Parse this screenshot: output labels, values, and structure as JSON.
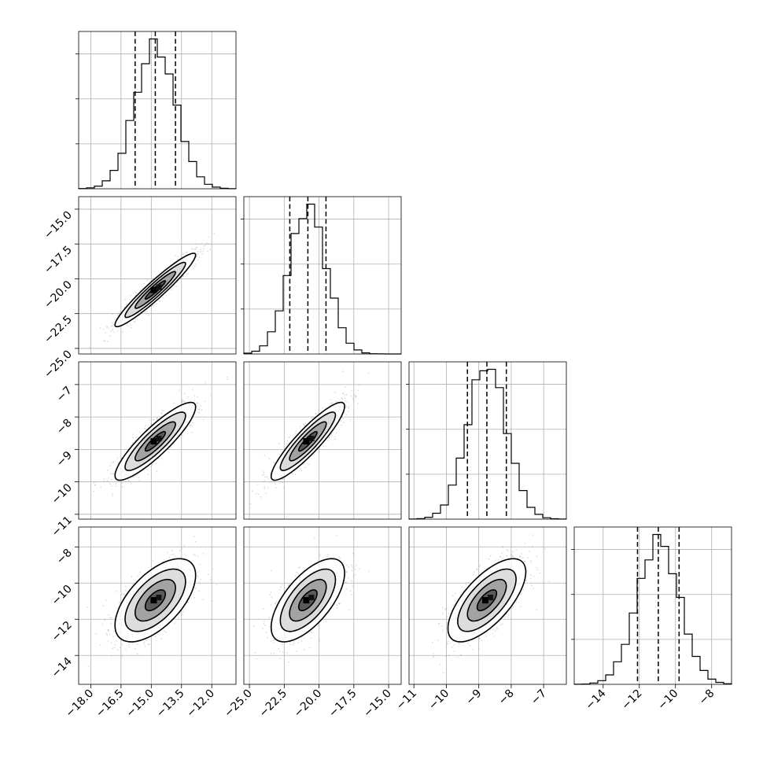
{
  "chart_data": {
    "type": "corner",
    "parameters": 4,
    "colors": {
      "line": "#000000",
      "scatter": "#9e9e9e",
      "grid": "#b0b0b0"
    },
    "grid": true,
    "ranges": [
      [
        -18.6,
        -10.8
      ],
      [
        -25.4,
        -14.1
      ],
      [
        -11.15,
        -6.3
      ],
      [
        -15.6,
        -6.9
      ]
    ],
    "ticks": [
      [
        -18.0,
        -16.5,
        -15.0,
        -13.5,
        -12.0
      ],
      [
        -25.0,
        -22.5,
        -20.0,
        -17.5,
        -15.0
      ],
      [
        -11,
        -10,
        -9,
        -8,
        -7
      ],
      [
        -14,
        -12,
        -10,
        -8
      ]
    ],
    "tick_labels": [
      [
        "−18.0",
        "−16.5",
        "−15.0",
        "−13.5",
        "−12.0"
      ],
      [
        "−25.0",
        "−22.5",
        "−20.0",
        "−17.5",
        "−15.0"
      ],
      [
        "−11",
        "−10",
        "−9",
        "−8",
        "−7"
      ],
      [
        "−14",
        "−12",
        "−10",
        "−8"
      ]
    ],
    "distributions": [
      {
        "mean": -14.8,
        "std": 1.0,
        "quantiles": [
          -15.8,
          -14.8,
          -13.8
        ]
      },
      {
        "mean": -20.8,
        "std": 1.32,
        "quantiles": [
          -22.1,
          -20.8,
          -19.5
        ]
      },
      {
        "mean": -8.75,
        "std": 0.6,
        "quantiles": [
          -9.35,
          -8.75,
          -8.15
        ]
      },
      {
        "mean": -10.95,
        "std": 1.15,
        "quantiles": [
          -12.1,
          -10.95,
          -9.8
        ]
      }
    ],
    "correlations": {
      "1-0": 0.95,
      "2-0": 0.88,
      "2-1": 0.9,
      "3-0": 0.6,
      "3-1": 0.65,
      "3-2": 0.68
    },
    "contour_levels_sigma": [
      0.5,
      1.0,
      1.5,
      2.0
    ]
  }
}
